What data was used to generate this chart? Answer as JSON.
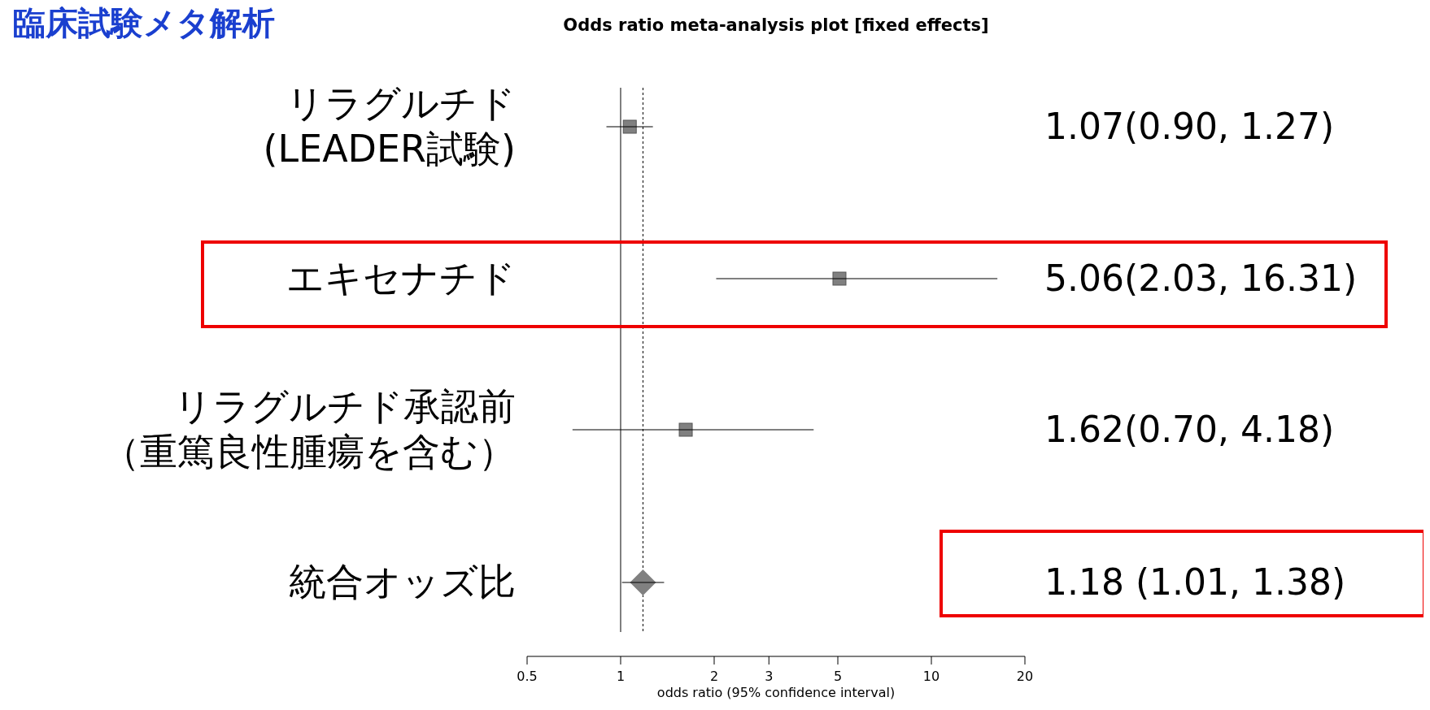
{
  "chart_data": {
    "type": "scatter",
    "orientation": "horizontal",
    "title": "臨床試験メタ解析",
    "subtitle": "Odds ratio meta-analysis plot [fixed effects]",
    "xlabel": "odds ratio (95% confidence interval)",
    "categories": [
      "リラグルチド(LEADER試験)",
      "エキセナチド",
      "リラグルチド承認前（重篤良性腫瘍を含む）",
      "統合オッズ比"
    ],
    "log": "x",
    "xlim": [
      0.5,
      20
    ],
    "xticks": [
      0.5,
      1,
      2,
      3,
      5,
      10,
      20
    ],
    "grid": false,
    "legend": false,
    "series": [
      {
        "type": "scatter",
        "marker": "square",
        "color": "#808080",
        "values": [
          1.07,
          5.06,
          1.62,
          null
        ],
        "errors": [
          [
            0.9,
            1.27
          ],
          [
            2.03,
            16.31
          ],
          [
            0.7,
            4.18
          ],
          null
        ]
      },
      {
        "type": "scatter",
        "marker": "diamond",
        "color": "#808080",
        "values": [
          null,
          null,
          null,
          1.18
        ],
        "errors": [
          null,
          null,
          null,
          [
            1.01,
            1.38
          ]
        ]
      }
    ],
    "annotations": [
      "1.07(0.90, 1.27)",
      "5.06(2.03, 16.31)",
      "1.62(0.70, 4.18)",
      "1.18 (1.01, 1.38)"
    ],
    "ref_lines": [
      {
        "axis": "x",
        "value": 1,
        "line_style": "solid",
        "color": "#000000"
      },
      {
        "axis": "x",
        "value": 1.18,
        "line_style": "dotted",
        "color": "#000000"
      }
    ]
  }
}
